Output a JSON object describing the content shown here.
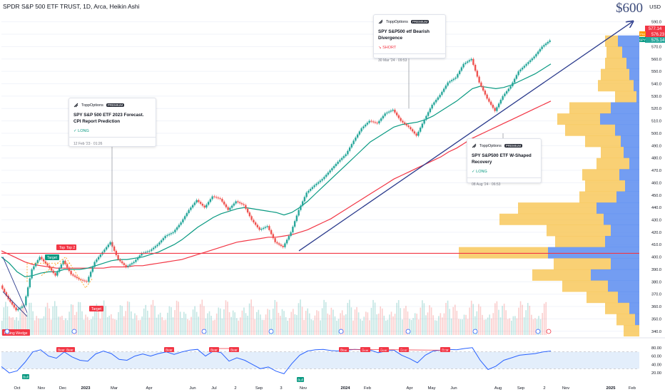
{
  "header": {
    "title": "SPDR S&P 500 ETF TRUST, 1D, Arca, Heikin Ashi",
    "currency": "USD"
  },
  "annotation_price": "$600",
  "price_labels": {
    "high_tag": "577.14",
    "close_tag": "575.14",
    "mid_tag": "576.23",
    "pre_label": "Pre",
    "spy_label": "SPY"
  },
  "ideas": [
    {
      "brand": "ToppOptions",
      "badge": "PREMIUM",
      "title": "SPY S&P 500 ETF 2023 Forecast. CPI Report Prediction",
      "direction": "LONG",
      "date": "12 Feb '23 · 01:26"
    },
    {
      "brand": "ToppOptions",
      "badge": "PREMIUM",
      "title": "SPY S&P500 etf Bearish Divergence",
      "direction": "SHORT",
      "date": "30 Mar '24 · 09:53"
    },
    {
      "brand": "ToppOptions",
      "badge": "PREMIUM",
      "title": "SPY S&P500 ETF W-Shaped Recovery",
      "direction": "LONG",
      "date": "08 Aug '24 · 06:53"
    }
  ],
  "markers": {
    "top": "Top",
    "top2": "Top 2",
    "target": "Target",
    "falling_wedge": "Falling Wedge",
    "bear": "Bear",
    "bull": "Bull"
  },
  "colors": {
    "up": "#26a69a",
    "down": "#ef5350",
    "ma_fast": "#089981",
    "ma_slow": "#f23645",
    "trend": "#2a3a8c",
    "vp_up": "#5b8cf0",
    "vp_down": "#f7c451",
    "rsi": "#2962ff",
    "rsi_band": "#e3eefb"
  },
  "chart_data": [
    {
      "type": "line",
      "title": "SPDR S&P 500 ETF TRUST, 1D, Arca, Heikin Ashi",
      "x_axis_labels": [
        "Oct",
        "Nov",
        "Dec",
        "2023",
        "Mar",
        "Apr",
        "Jun",
        "Jul",
        "2",
        "Sep",
        "3",
        "Nov",
        "2024",
        "Feb",
        "Apr",
        "May",
        "Jun",
        "Aug",
        "Sep",
        "2",
        "Nov",
        "2025",
        "Feb"
      ],
      "y_ticks": [
        340,
        350,
        360,
        370,
        380,
        390,
        400,
        410,
        420,
        430,
        440,
        450,
        460,
        470,
        480,
        490,
        500,
        510,
        520,
        530,
        540,
        550,
        560,
        570,
        580,
        590
      ],
      "ylim": [
        337,
        595
      ],
      "series": [
        {
          "values": [
            377,
            366,
            357,
            361,
            390,
            400,
            393,
            385,
            397,
            386,
            382,
            380,
            396,
            404,
            412,
            398,
            392,
            396,
            403,
            405,
            410,
            417,
            420,
            428,
            438,
            446,
            440,
            449,
            447,
            438,
            445,
            442,
            430,
            422,
            425,
            412,
            408,
            420,
            438,
            452,
            458,
            463,
            470,
            477,
            483,
            494,
            504,
            510,
            508,
            516,
            519,
            510,
            505,
            498,
            511,
            523,
            531,
            541,
            545,
            556,
            560,
            541,
            528,
            518,
            530,
            538,
            550,
            556,
            562,
            570,
            575
          ]
        },
        {
          "values": [
            400,
            395,
            388,
            384,
            385,
            387,
            388,
            388,
            390,
            390,
            390,
            391,
            393,
            395,
            397,
            398,
            398,
            399,
            400,
            402,
            404,
            407,
            410,
            414,
            419,
            424,
            428,
            432,
            435,
            437,
            439,
            440,
            439,
            438,
            437,
            436,
            434,
            436,
            440,
            445,
            451,
            457,
            463,
            469,
            475,
            481,
            487,
            493,
            497,
            501,
            505,
            507,
            508,
            509,
            511,
            514,
            518,
            522,
            526,
            531,
            536,
            538,
            537,
            536,
            537,
            539,
            542,
            545,
            548,
            552,
            556
          ]
        },
        {
          "values": [
            405,
            402,
            399,
            396,
            394,
            393,
            392,
            391,
            391,
            391,
            391,
            391,
            391,
            391,
            392,
            392,
            392,
            393,
            393,
            394,
            395,
            396,
            397,
            398,
            400,
            402,
            404,
            406,
            408,
            410,
            412,
            413,
            414,
            415,
            416,
            416,
            417,
            418,
            420,
            422,
            425,
            428,
            431,
            435,
            439,
            443,
            447,
            451,
            455,
            459,
            463,
            466,
            469,
            472,
            475,
            478,
            481,
            485,
            488,
            492,
            496,
            499,
            502,
            505,
            508,
            511,
            514,
            517,
            520,
            523,
            526
          ]
        }
      ]
    },
    {
      "type": "line",
      "ylim": [
        0,
        100
      ],
      "y_ticks": [
        20,
        40,
        60,
        80
      ],
      "series": [
        {
          "values": [
            35,
            20,
            25,
            45,
            70,
            75,
            60,
            55,
            70,
            58,
            50,
            48,
            65,
            72,
            66,
            52,
            50,
            60,
            65,
            60,
            66,
            70,
            64,
            70,
            74,
            76,
            60,
            72,
            68,
            48,
            56,
            50,
            40,
            30,
            34,
            24,
            18,
            42,
            62,
            72,
            75,
            76,
            73,
            72,
            74,
            76,
            75,
            74,
            68,
            72,
            74,
            62,
            54,
            44,
            62,
            72,
            74,
            76,
            75,
            78,
            80,
            50,
            28,
            36,
            50,
            56,
            62,
            64,
            66,
            70,
            72
          ]
        }
      ]
    }
  ]
}
